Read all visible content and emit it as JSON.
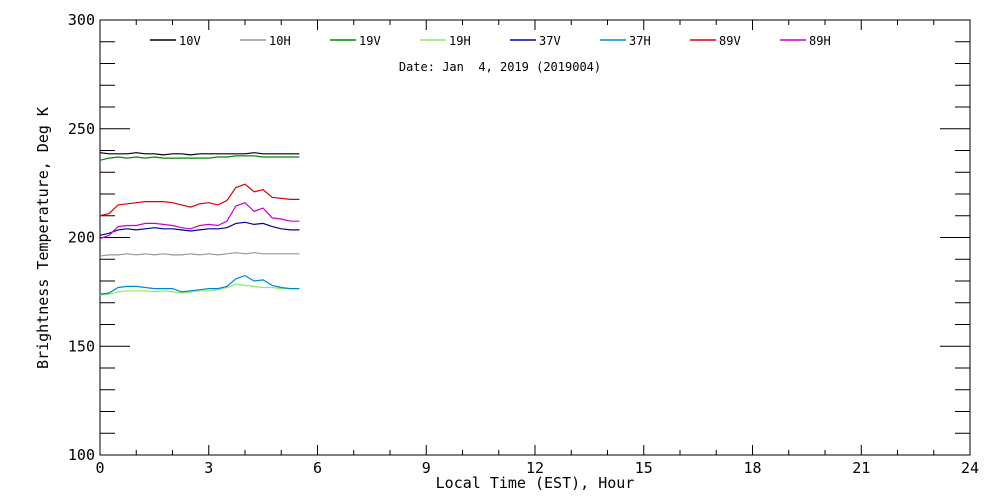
{
  "chart_data": {
    "type": "line",
    "title": "",
    "annotation": "Date: Jan  4, 2019 (2019004)",
    "xlabel": "Local Time (EST), Hour",
    "ylabel": "Brightness Temperature, Deg K",
    "xlim": [
      0,
      24
    ],
    "ylim": [
      100,
      300
    ],
    "xticks": [
      0,
      3,
      6,
      9,
      12,
      15,
      18,
      21,
      24
    ],
    "yticks": [
      100,
      150,
      200,
      250,
      300
    ],
    "grid": false,
    "legend_position": "top",
    "x": [
      0,
      0.25,
      0.5,
      0.75,
      1.0,
      1.25,
      1.5,
      1.75,
      2.0,
      2.25,
      2.5,
      2.75,
      3.0,
      3.25,
      3.5,
      3.75,
      4.0,
      4.25,
      4.5,
      4.75,
      5.0,
      5.25,
      5.5
    ],
    "series": [
      {
        "name": "10V",
        "color": "#000000",
        "values": [
          239,
          238.5,
          238.5,
          238.5,
          239,
          238.5,
          238.5,
          238,
          238.5,
          238.5,
          238,
          238.5,
          238.5,
          238.5,
          238.5,
          238.5,
          238.5,
          239,
          238.5,
          238.5,
          238.5,
          238.5,
          238.5
        ]
      },
      {
        "name": "10H",
        "color": "#999999",
        "values": [
          191.5,
          192,
          192,
          192.5,
          192,
          192.5,
          192,
          192.5,
          192,
          192,
          192.5,
          192,
          192.5,
          192,
          192.5,
          193,
          192.5,
          193,
          192.5,
          192.5,
          192.5,
          192.5,
          192.5
        ]
      },
      {
        "name": "19V",
        "color": "#008800",
        "values": [
          235.5,
          236.5,
          237,
          236.5,
          237,
          236.5,
          237,
          236.5,
          236.5,
          236.5,
          236.5,
          236.5,
          236.5,
          237,
          237,
          237.5,
          237.5,
          237.5,
          237,
          237,
          237,
          237,
          237
        ]
      },
      {
        "name": "19H",
        "color": "#88ee66",
        "values": [
          173.5,
          174,
          175,
          175.5,
          175.5,
          175.5,
          175,
          175.5,
          175,
          174.5,
          175,
          175.5,
          175.5,
          176,
          177,
          178.5,
          178,
          177.5,
          177,
          177,
          176.5,
          176.5,
          176.5
        ]
      },
      {
        "name": "37V",
        "color": "#000099",
        "values": [
          201,
          202,
          203.5,
          204,
          203.5,
          204,
          204.5,
          204,
          204,
          203.5,
          203,
          203.5,
          204,
          204,
          204.5,
          206.5,
          207,
          206,
          206.5,
          205,
          204,
          203.5,
          203.5
        ]
      },
      {
        "name": "37H",
        "color": "#0088cc",
        "values": [
          174,
          174.5,
          177,
          177.5,
          177.5,
          177,
          176.5,
          176.5,
          176.5,
          175,
          175.5,
          176,
          176.5,
          176.5,
          177.5,
          181,
          182.5,
          180,
          180.5,
          178,
          177,
          176.5,
          176.5
        ]
      },
      {
        "name": "89V",
        "color": "#dd0000",
        "values": [
          210,
          211,
          215,
          215.5,
          216,
          216.5,
          216.5,
          216.5,
          216,
          215,
          214,
          215.5,
          216,
          215,
          217,
          223,
          224.5,
          221,
          222,
          218.5,
          218,
          217.5,
          217.5
        ]
      },
      {
        "name": "89H",
        "color": "#cc00cc",
        "values": [
          199.5,
          201,
          205,
          205.5,
          205.5,
          206.5,
          206.5,
          206,
          205.5,
          204.5,
          204,
          205.5,
          206,
          205.5,
          207.5,
          214.5,
          216,
          212,
          213.5,
          209,
          208.5,
          207.5,
          207.5
        ]
      }
    ]
  }
}
